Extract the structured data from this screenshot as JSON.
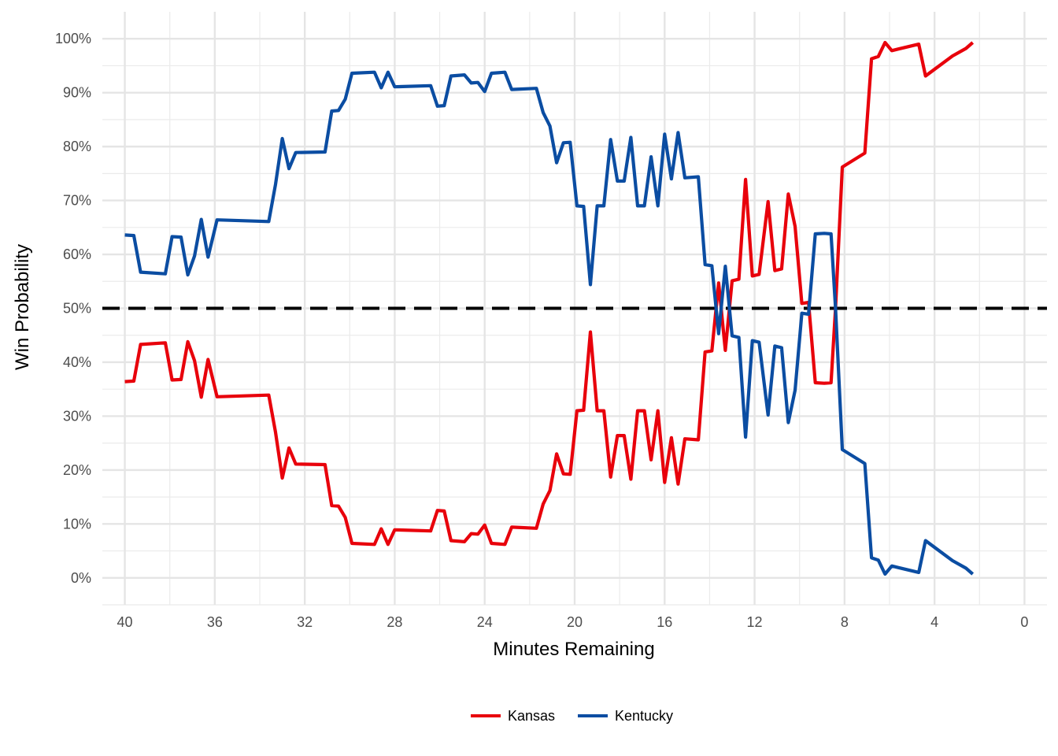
{
  "chart_data": {
    "type": "line",
    "title": "",
    "xlabel": "Minutes Remaining",
    "ylabel": "Win Probability",
    "xlim": [
      41,
      -1
    ],
    "ylim": [
      -5,
      105
    ],
    "x_ticks": [
      40,
      36,
      32,
      28,
      24,
      20,
      16,
      12,
      8,
      4,
      0
    ],
    "y_ticks": [
      0,
      10,
      20,
      30,
      40,
      50,
      60,
      70,
      80,
      90,
      100
    ],
    "y_tick_format": "{v}%",
    "reference_line": {
      "y": 50,
      "style": "dashed",
      "color": "#000000"
    },
    "grid": true,
    "legend_position": "bottom",
    "series": [
      {
        "name": "Kansas",
        "color": "#e8000b",
        "points": [
          [
            40,
            36.4
          ],
          [
            39.6,
            36.5
          ],
          [
            39.3,
            43.3
          ],
          [
            38.2,
            43.6
          ],
          [
            37.9,
            36.7
          ],
          [
            37.5,
            36.8
          ],
          [
            37.2,
            43.8
          ],
          [
            36.9,
            40.3
          ],
          [
            36.6,
            33.5
          ],
          [
            36.3,
            40.5
          ],
          [
            35.9,
            33.6
          ],
          [
            33.6,
            33.9
          ],
          [
            33.3,
            27
          ],
          [
            33,
            18.5
          ],
          [
            32.7,
            24.1
          ],
          [
            32.4,
            21.1
          ],
          [
            31.1,
            21
          ],
          [
            30.8,
            13.4
          ],
          [
            30.5,
            13.3
          ],
          [
            30.2,
            11.2
          ],
          [
            29.9,
            6.4
          ],
          [
            28.9,
            6.2
          ],
          [
            28.6,
            9.1
          ],
          [
            28.3,
            6.2
          ],
          [
            28,
            8.9
          ],
          [
            26.4,
            8.7
          ],
          [
            26.1,
            12.5
          ],
          [
            25.8,
            12.4
          ],
          [
            25.5,
            6.9
          ],
          [
            24.9,
            6.7
          ],
          [
            24.6,
            8.2
          ],
          [
            24.3,
            8.1
          ],
          [
            24,
            9.8
          ],
          [
            23.7,
            6.4
          ],
          [
            23.1,
            6.2
          ],
          [
            22.8,
            9.4
          ],
          [
            21.7,
            9.2
          ],
          [
            21.4,
            13.7
          ],
          [
            21.1,
            16.2
          ],
          [
            20.8,
            23
          ],
          [
            20.5,
            19.3
          ],
          [
            20.2,
            19.2
          ],
          [
            19.9,
            31
          ],
          [
            19.6,
            31.1
          ],
          [
            19.3,
            45.6
          ],
          [
            19,
            31
          ],
          [
            18.7,
            31
          ],
          [
            18.4,
            18.7
          ],
          [
            18.1,
            26.4
          ],
          [
            17.8,
            26.4
          ],
          [
            17.5,
            18.3
          ],
          [
            17.2,
            31
          ],
          [
            16.9,
            31
          ],
          [
            16.6,
            21.9
          ],
          [
            16.3,
            31
          ],
          [
            16,
            17.7
          ],
          [
            15.7,
            26
          ],
          [
            15.4,
            17.4
          ],
          [
            15.1,
            25.8
          ],
          [
            14.5,
            25.6
          ],
          [
            14.2,
            41.9
          ],
          [
            13.9,
            42.1
          ],
          [
            13.6,
            54.7
          ],
          [
            13.3,
            42.2
          ],
          [
            13,
            55.1
          ],
          [
            12.7,
            55.4
          ],
          [
            12.4,
            73.9
          ],
          [
            12.1,
            56
          ],
          [
            11.8,
            56.3
          ],
          [
            11.4,
            69.8
          ],
          [
            11.1,
            57
          ],
          [
            10.8,
            57.3
          ],
          [
            10.5,
            71.2
          ],
          [
            10.2,
            65.2
          ],
          [
            9.9,
            50.9
          ],
          [
            9.6,
            51.1
          ],
          [
            9.3,
            36.2
          ],
          [
            8.9,
            36.1
          ],
          [
            8.6,
            36.2
          ],
          [
            8.4,
            50
          ],
          [
            8.1,
            76.2
          ],
          [
            7.1,
            78.8
          ],
          [
            6.8,
            96.3
          ],
          [
            6.5,
            96.7
          ],
          [
            6.2,
            99.3
          ],
          [
            5.9,
            97.8
          ],
          [
            5.6,
            98.1
          ],
          [
            4.7,
            99
          ],
          [
            4.4,
            93.1
          ],
          [
            3.2,
            96.8
          ],
          [
            2.6,
            98.2
          ],
          [
            2.3,
            99.3
          ]
        ]
      },
      {
        "name": "Kentucky",
        "color": "#0b4da2",
        "points": [
          [
            40,
            63.6
          ],
          [
            39.6,
            63.5
          ],
          [
            39.3,
            56.7
          ],
          [
            38.2,
            56.4
          ],
          [
            37.9,
            63.3
          ],
          [
            37.5,
            63.2
          ],
          [
            37.2,
            56.2
          ],
          [
            36.9,
            59.7
          ],
          [
            36.6,
            66.5
          ],
          [
            36.3,
            59.5
          ],
          [
            35.9,
            66.4
          ],
          [
            33.6,
            66.1
          ],
          [
            33.3,
            73
          ],
          [
            33,
            81.5
          ],
          [
            32.7,
            75.9
          ],
          [
            32.4,
            78.9
          ],
          [
            31.1,
            79
          ],
          [
            30.8,
            86.6
          ],
          [
            30.5,
            86.7
          ],
          [
            30.2,
            88.8
          ],
          [
            29.9,
            93.6
          ],
          [
            28.9,
            93.8
          ],
          [
            28.6,
            90.9
          ],
          [
            28.3,
            93.8
          ],
          [
            28,
            91.1
          ],
          [
            26.4,
            91.3
          ],
          [
            26.1,
            87.5
          ],
          [
            25.8,
            87.6
          ],
          [
            25.5,
            93.1
          ],
          [
            24.9,
            93.3
          ],
          [
            24.6,
            91.8
          ],
          [
            24.3,
            91.9
          ],
          [
            24,
            90.2
          ],
          [
            23.7,
            93.6
          ],
          [
            23.1,
            93.8
          ],
          [
            22.8,
            90.6
          ],
          [
            21.7,
            90.8
          ],
          [
            21.4,
            86.3
          ],
          [
            21.1,
            83.8
          ],
          [
            20.8,
            77
          ],
          [
            20.5,
            80.7
          ],
          [
            20.2,
            80.8
          ],
          [
            19.9,
            69
          ],
          [
            19.6,
            68.9
          ],
          [
            19.3,
            54.4
          ],
          [
            19,
            69
          ],
          [
            18.7,
            69
          ],
          [
            18.4,
            81.3
          ],
          [
            18.1,
            73.6
          ],
          [
            17.8,
            73.6
          ],
          [
            17.5,
            81.7
          ],
          [
            17.2,
            69
          ],
          [
            16.9,
            69
          ],
          [
            16.6,
            78.1
          ],
          [
            16.3,
            69
          ],
          [
            16,
            82.3
          ],
          [
            15.7,
            74
          ],
          [
            15.4,
            82.6
          ],
          [
            15.1,
            74.2
          ],
          [
            14.5,
            74.4
          ],
          [
            14.2,
            58.1
          ],
          [
            13.9,
            57.9
          ],
          [
            13.6,
            45.3
          ],
          [
            13.3,
            57.8
          ],
          [
            13,
            44.9
          ],
          [
            12.7,
            44.6
          ],
          [
            12.4,
            26.1
          ],
          [
            12.1,
            44
          ],
          [
            11.8,
            43.7
          ],
          [
            11.4,
            30.2
          ],
          [
            11.1,
            43
          ],
          [
            10.8,
            42.7
          ],
          [
            10.5,
            28.8
          ],
          [
            10.2,
            34.8
          ],
          [
            9.9,
            49.1
          ],
          [
            9.6,
            48.9
          ],
          [
            9.3,
            63.8
          ],
          [
            8.9,
            63.9
          ],
          [
            8.6,
            63.8
          ],
          [
            8.4,
            50
          ],
          [
            8.1,
            23.8
          ],
          [
            7.1,
            21.2
          ],
          [
            6.8,
            3.7
          ],
          [
            6.5,
            3.3
          ],
          [
            6.2,
            0.7
          ],
          [
            5.9,
            2.2
          ],
          [
            5.6,
            1.9
          ],
          [
            4.7,
            1
          ],
          [
            4.4,
            6.9
          ],
          [
            3.2,
            3.2
          ],
          [
            2.6,
            1.8
          ],
          [
            2.3,
            0.7
          ]
        ]
      }
    ]
  }
}
